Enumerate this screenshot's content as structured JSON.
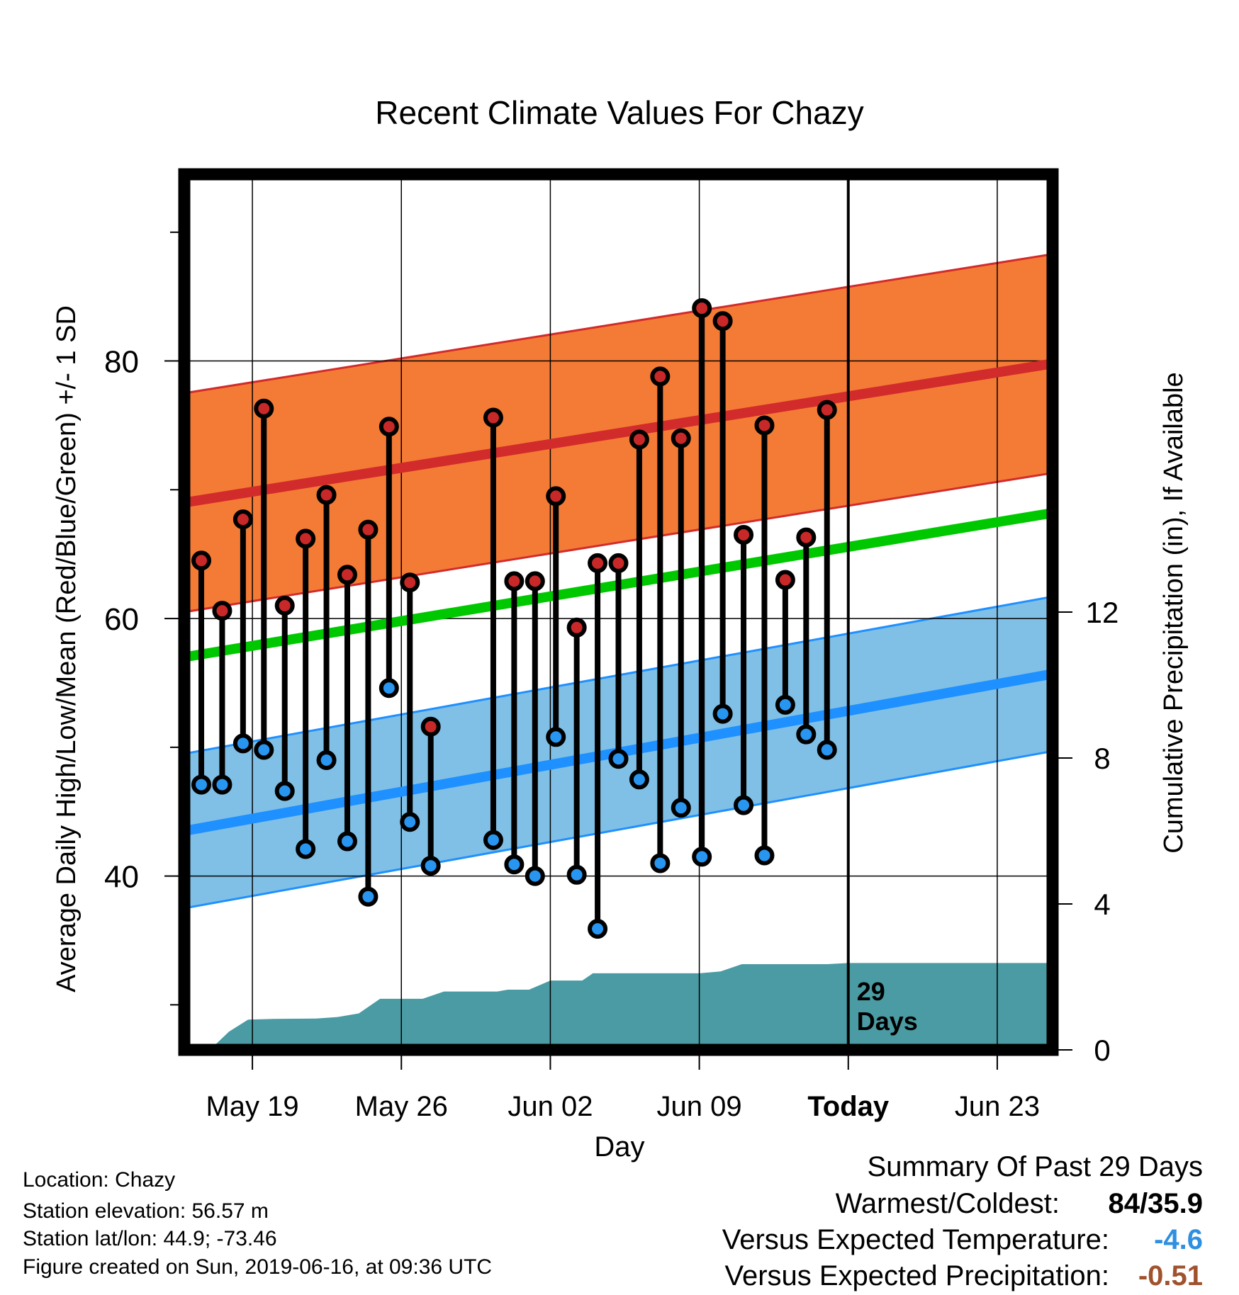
{
  "chart_data": {
    "type": "line",
    "title": "Recent Climate Values For Chazy",
    "xlabel": "Day",
    "ylabel": "Average Daily High/Low/Mean (Red/Blue/Green) +/- 1 SD",
    "y2label": "Cumulative Precipitation (in), If Available",
    "x_ticks": [
      {
        "day": 19,
        "label": "May 19"
      },
      {
        "day": 26,
        "label": "May 26"
      },
      {
        "day": 33,
        "label": "Jun 02"
      },
      {
        "day": 40,
        "label": "Jun 09"
      },
      {
        "day": 47,
        "label": "Today"
      },
      {
        "day": 54,
        "label": "Jun 23"
      }
    ],
    "x_range_day_of_may": [
      15.8,
      56.6
    ],
    "ylim": [
      26.5,
      94.5
    ],
    "y_ticks": [
      40,
      60,
      80
    ],
    "y2lim": [
      0,
      24
    ],
    "y2_ticks": [
      0,
      4,
      8,
      12
    ],
    "today_day": 47,
    "today_annotation": [
      "29",
      "Days"
    ],
    "normal_high": {
      "start": 69.0,
      "end": 79.8,
      "sd": 8.5
    },
    "normal_low": {
      "start": 43.5,
      "end": 55.7,
      "sd": 6.0
    },
    "normal_mean": {
      "start": 57.0,
      "end": 68.2
    },
    "observed": {
      "start_day": 16.6,
      "step_days": 0.98,
      "highs": [
        64.5,
        60.6,
        67.7,
        76.3,
        61.0,
        66.2,
        69.6,
        63.4,
        66.9,
        74.9,
        62.8,
        51.6,
        null,
        null,
        75.6,
        62.9,
        62.9,
        69.5,
        59.3,
        64.3,
        64.3,
        73.9,
        78.8,
        74.0,
        84.1,
        83.1,
        66.5,
        75.0,
        63.0,
        66.3,
        76.2
      ],
      "lows": [
        47.1,
        47.1,
        50.3,
        49.8,
        46.6,
        42.1,
        49.0,
        42.7,
        38.4,
        54.6,
        44.2,
        40.8,
        null,
        null,
        42.8,
        40.9,
        40.0,
        50.8,
        40.1,
        35.9,
        49.1,
        47.5,
        41.0,
        45.3,
        41.5,
        52.6,
        45.5,
        41.6,
        53.3,
        51.0,
        49.8
      ]
    },
    "precip_cumulative": [
      [
        17.0,
        0.0
      ],
      [
        17.9,
        0.5
      ],
      [
        18.8,
        0.83
      ],
      [
        20.0,
        0.85
      ],
      [
        22.0,
        0.86
      ],
      [
        23.0,
        0.9
      ],
      [
        24.0,
        1.0
      ],
      [
        25.0,
        1.4
      ],
      [
        26.5,
        1.4
      ],
      [
        27.0,
        1.4
      ],
      [
        28.0,
        1.6
      ],
      [
        30.5,
        1.6
      ],
      [
        31.0,
        1.65
      ],
      [
        32.0,
        1.65
      ],
      [
        33.0,
        1.9
      ],
      [
        34.5,
        1.9
      ],
      [
        35.0,
        2.1
      ],
      [
        37.0,
        2.1
      ],
      [
        40.0,
        2.1
      ],
      [
        41.0,
        2.15
      ],
      [
        42.0,
        2.35
      ],
      [
        46.0,
        2.35
      ],
      [
        47.0,
        2.38
      ],
      [
        56.6,
        2.38
      ]
    ],
    "colors": {
      "high_band": "#f47b35",
      "high_line": "#d22b2b",
      "low_band": "#80c0e6",
      "low_line": "#1e90ff",
      "mean_line": "#00c800",
      "precip": "#4a9ba3",
      "high_dot": "#c82828",
      "low_dot": "#2896f0"
    }
  },
  "info": {
    "location": "Location: Chazy",
    "elevation": "Station elevation: 56.57 m",
    "latlon": "Station lat/lon: 44.9; -73.46",
    "created": "Figure created on Sun, 2019-06-16, at 09:36 UTC"
  },
  "summary": {
    "heading": "Summary Of Past 29 Days",
    "warmest_label": "Warmest/Coldest:",
    "warmest_value": "84/35.9",
    "temp_label": "Versus Expected Temperature:",
    "temp_value": "-4.6",
    "temp_color": "#2f8fe0",
    "precip_label": "Versus Expected Precipitation:",
    "precip_value": "-0.51",
    "precip_color": "#a0522d"
  }
}
